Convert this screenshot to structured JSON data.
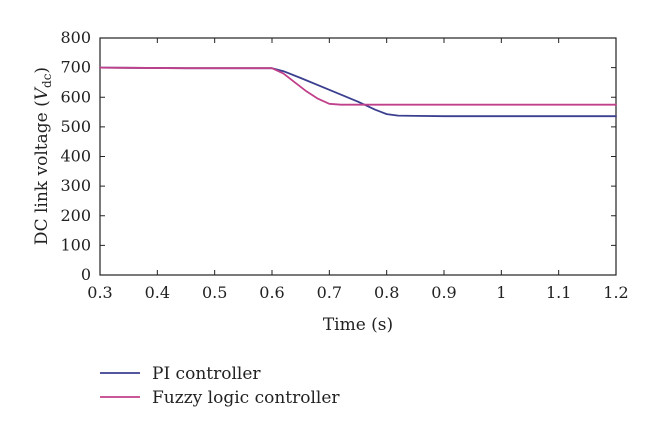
{
  "chart_data": {
    "type": "line",
    "xlabel": "Time (s)",
    "ylabel": {
      "text": "DC link voltage (",
      "symbol": "V",
      "subscript": "dc",
      "close": ")"
    },
    "xlim": [
      0.3,
      1.2
    ],
    "ylim": [
      0,
      800
    ],
    "xticks": [
      "0.3",
      "0.4",
      "0.5",
      "0.6",
      "0.7",
      "0.8",
      "0.9",
      "1",
      "1.1",
      "1.2"
    ],
    "yticks": [
      "0",
      "100",
      "200",
      "300",
      "400",
      "500",
      "600",
      "700",
      "800"
    ],
    "grid": false,
    "legend_position": "bottom-left",
    "series": [
      {
        "name": "PI controller",
        "color": "#3b3f8f",
        "x": [
          0.3,
          0.45,
          0.6,
          0.62,
          0.65,
          0.7,
          0.75,
          0.78,
          0.8,
          0.82,
          0.85,
          0.9,
          1.0,
          1.1,
          1.2
        ],
        "y": [
          700,
          698,
          698,
          688,
          665,
          625,
          585,
          558,
          543,
          538,
          537,
          536,
          536,
          536,
          536
        ]
      },
      {
        "name": "Fuzzy logic controller",
        "color": "#c0408a",
        "x": [
          0.3,
          0.45,
          0.6,
          0.62,
          0.64,
          0.66,
          0.68,
          0.7,
          0.72,
          0.75,
          0.8,
          0.9,
          1.0,
          1.1,
          1.2
        ],
        "y": [
          700,
          698,
          698,
          680,
          650,
          620,
          595,
          578,
          575,
          575,
          575,
          575,
          575,
          575,
          575
        ]
      }
    ]
  }
}
